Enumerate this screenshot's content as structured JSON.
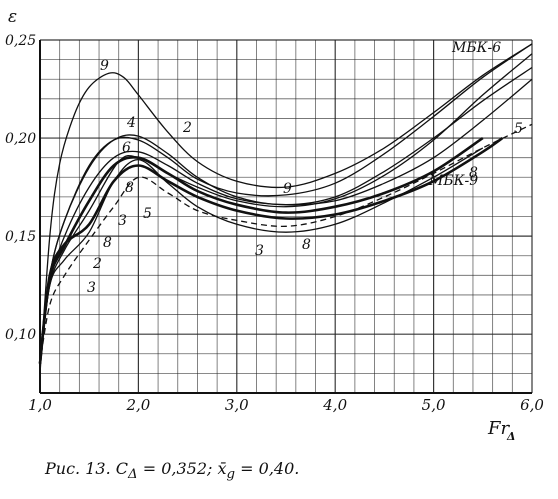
{
  "chart_data": {
    "type": "line",
    "xlabel": "Fr_Δ",
    "xlabel_main": "Fr",
    "xlabel_sub": "Δ",
    "ylabel": "ε",
    "xlim": [
      1.0,
      6.0
    ],
    "ylim": [
      0.07,
      0.25
    ],
    "x_ticks": [
      "1,0",
      "2,0",
      "3,0",
      "4,0",
      "5,0",
      "6,0"
    ],
    "y_ticks": [
      "0,10",
      "0,15",
      "0,20",
      "0,25"
    ],
    "grid": true,
    "series": [
      {
        "name": "9",
        "style": "solid",
        "x": [
          1.0,
          1.1,
          1.2,
          1.35,
          1.5,
          1.7,
          1.85,
          2.0,
          2.3,
          2.6,
          3.0,
          3.5,
          4.0,
          4.5,
          5.0,
          5.5,
          6.0
        ],
        "y": [
          0.08,
          0.15,
          0.187,
          0.212,
          0.226,
          0.233,
          0.231,
          0.222,
          0.203,
          0.188,
          0.178,
          0.175,
          0.182,
          0.195,
          0.213,
          0.232,
          0.248
        ]
      },
      {
        "name": "МБК-6",
        "style": "solid",
        "x": [
          1.0,
          1.1,
          1.25,
          1.5,
          1.75,
          2.0,
          2.3,
          2.6,
          3.0,
          3.5,
          4.0,
          4.5,
          5.0,
          5.5,
          6.0
        ],
        "y": [
          0.085,
          0.13,
          0.158,
          0.186,
          0.199,
          0.199,
          0.19,
          0.179,
          0.172,
          0.171,
          0.177,
          0.192,
          0.211,
          0.231,
          0.248
        ]
      },
      {
        "name": "4",
        "style": "solid",
        "x": [
          1.0,
          1.1,
          1.25,
          1.5,
          1.75,
          2.0,
          2.3,
          2.6,
          3.0,
          3.5,
          4.0,
          4.5,
          5.0,
          5.5,
          6.0
        ],
        "y": [
          0.085,
          0.13,
          0.158,
          0.185,
          0.199,
          0.201,
          0.192,
          0.18,
          0.17,
          0.166,
          0.17,
          0.183,
          0.2,
          0.219,
          0.236
        ]
      },
      {
        "name": "2",
        "style": "solid",
        "x": [
          1.0,
          1.1,
          1.25,
          1.5,
          1.8,
          2.0,
          2.3,
          2.6,
          3.0,
          3.5,
          4.0,
          4.5,
          5.0,
          5.5,
          6.0
        ],
        "y": [
          0.085,
          0.125,
          0.143,
          0.163,
          0.188,
          0.19,
          0.182,
          0.175,
          0.168,
          0.165,
          0.169,
          0.181,
          0.199,
          0.222,
          0.243
        ]
      },
      {
        "name": "6",
        "style": "solid",
        "x": [
          1.0,
          1.1,
          1.25,
          1.5,
          1.75,
          2.0,
          2.3,
          2.6,
          3.0,
          3.5,
          4.0,
          4.5,
          5.0,
          5.5,
          6.0
        ],
        "y": [
          0.085,
          0.126,
          0.15,
          0.175,
          0.19,
          0.193,
          0.186,
          0.177,
          0.169,
          0.166,
          0.168,
          0.177,
          0.19,
          0.209,
          0.23
        ]
      },
      {
        "name": "МБК-9",
        "style": "bold",
        "x": [
          1.0,
          1.1,
          1.25,
          1.5,
          1.75,
          2.0,
          2.3,
          2.6,
          3.0,
          3.5,
          4.0,
          4.5,
          5.0,
          5.5
        ],
        "y": [
          0.085,
          0.128,
          0.145,
          0.168,
          0.186,
          0.19,
          0.182,
          0.173,
          0.166,
          0.162,
          0.165,
          0.172,
          0.183,
          0.2
        ]
      },
      {
        "name": "8",
        "style": "bold",
        "x": [
          1.0,
          1.1,
          1.25,
          1.5,
          1.75,
          2.0,
          2.3,
          2.6,
          3.0,
          3.5,
          4.0,
          4.5,
          5.0,
          5.5,
          5.7
        ],
        "y": [
          0.085,
          0.13,
          0.146,
          0.156,
          0.178,
          0.186,
          0.178,
          0.17,
          0.163,
          0.159,
          0.161,
          0.168,
          0.178,
          0.193,
          0.2
        ]
      },
      {
        "name": "3",
        "style": "solid",
        "x": [
          1.0,
          1.1,
          1.25,
          1.5,
          1.75,
          2.0,
          2.3,
          2.6,
          3.0,
          3.5,
          4.0,
          4.5,
          5.0,
          5.5
        ],
        "y": [
          0.085,
          0.125,
          0.138,
          0.152,
          0.178,
          0.189,
          0.177,
          0.165,
          0.156,
          0.152,
          0.156,
          0.167,
          0.18,
          0.195
        ]
      },
      {
        "name": "5",
        "style": "dashed",
        "x": [
          1.0,
          1.1,
          1.25,
          1.5,
          1.75,
          2.0,
          2.3,
          2.6,
          3.0,
          3.5,
          4.0,
          4.5,
          5.0,
          5.5,
          6.0
        ],
        "y": [
          0.085,
          0.115,
          0.13,
          0.148,
          0.165,
          0.18,
          0.172,
          0.163,
          0.158,
          0.155,
          0.16,
          0.17,
          0.182,
          0.195,
          0.207
        ]
      }
    ]
  },
  "caption": {
    "text": "Рис. 13. C_Δ = 0,352; x̄_g = 0,40.",
    "prefix": "Рис. 13.  C",
    "sub1": "Δ",
    "mid": " = 0,352;  x̄",
    "sub2": "g",
    "suffix": " = 0,40."
  },
  "colors": {
    "ink": "#111111",
    "grid": "#222222",
    "background": "#ffffff"
  }
}
